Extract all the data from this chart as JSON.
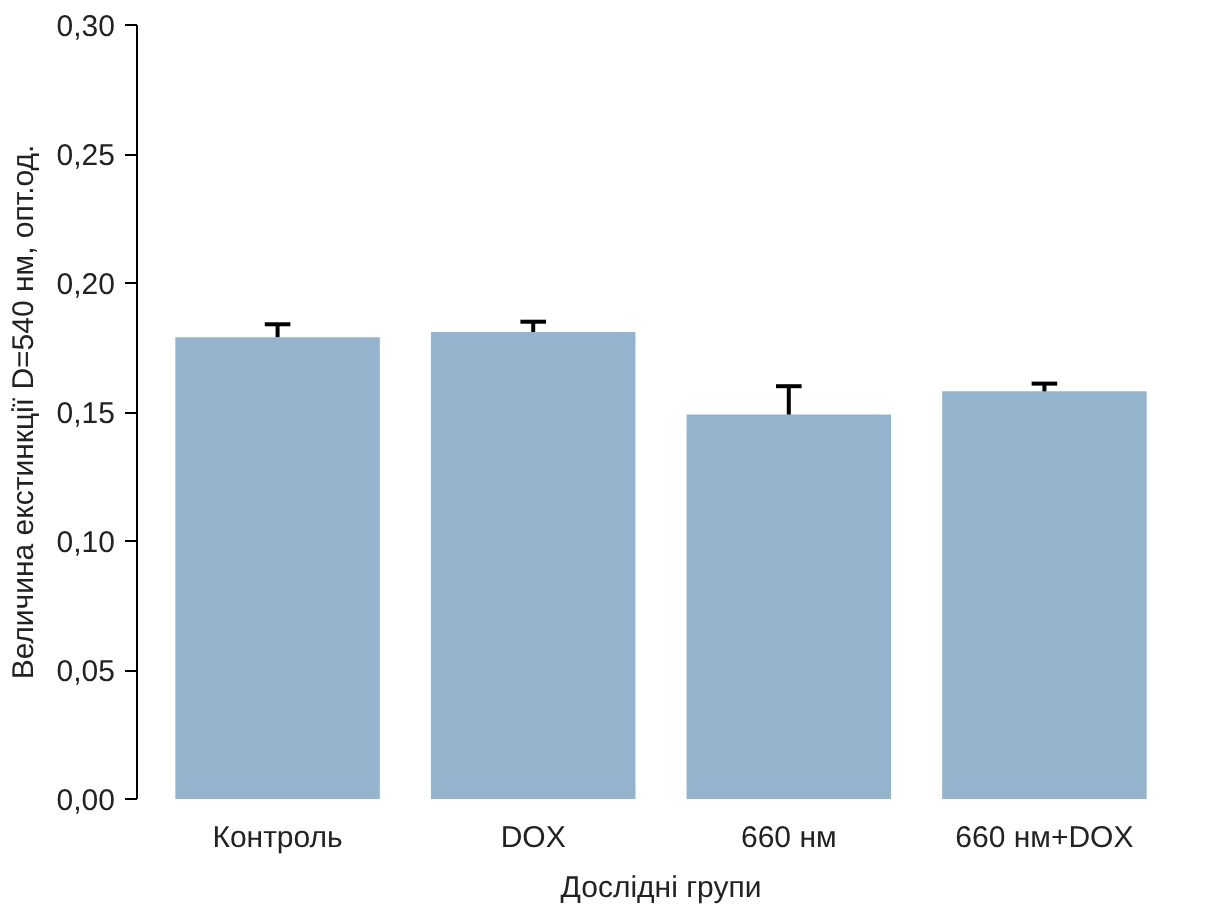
{
  "chart_data": {
    "type": "bar",
    "xlabel": "Дослідні групи",
    "ylabel": "Величина екстинкції D=540 нм, опт.од.",
    "categories": [
      "Контроль",
      "DOX",
      "660 нм",
      "660 нм+DOX"
    ],
    "values": [
      0.179,
      0.181,
      0.149,
      0.158
    ],
    "errors": [
      [
        0.179,
        0.184
      ],
      [
        0.181,
        0.185
      ],
      [
        0.149,
        0.16
      ],
      [
        0.158,
        0.161
      ]
    ],
    "color": "#94b4ce",
    "ylim": [
      0,
      0.3
    ],
    "yticks": [
      {
        "value": 0,
        "label": "0,00"
      },
      {
        "value": 0.05,
        "label": "0,05"
      },
      {
        "value": 0.1,
        "label": "0,10"
      },
      {
        "value": 0.15,
        "label": "0,15"
      },
      {
        "value": 0.2,
        "label": "0,20"
      },
      {
        "value": 0.25,
        "label": "0,25"
      },
      {
        "value": 0.3,
        "label": "0,30"
      }
    ],
    "grid": false
  }
}
